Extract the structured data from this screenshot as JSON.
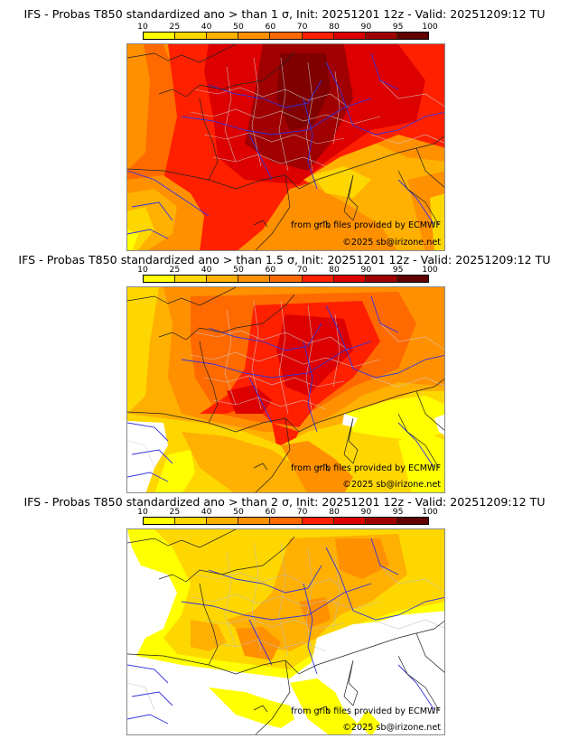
{
  "colorbar": {
    "ticks": [
      "10",
      "25",
      "40",
      "50",
      "60",
      "70",
      "80",
      "90",
      "95",
      "100"
    ],
    "colors": [
      "#ffff00",
      "#ffd700",
      "#ffb000",
      "#ff9000",
      "#ff6a00",
      "#ff2000",
      "#dd0000",
      "#a00000",
      "#600000"
    ]
  },
  "panels": [
    {
      "title": "IFS - Probas T850  standardized ano > than 1 σ, Init: 20251201 12z - Valid: 20251209:12 TU",
      "credit_source": "from grib files provided by ECMWF",
      "credit_copyright": "©2025 sb@irizone.net"
    },
    {
      "title": "IFS - Probas T850  standardized ano > than 1.5 σ, Init: 20251201 12z - Valid: 20251209:12 TU",
      "credit_source": "from grib files provided by ECMWF",
      "credit_copyright": "©2025 sb@irizone.net"
    },
    {
      "title": "IFS - Probas T850  standardized ano > than 2 σ, Init: 20251201 12z - Valid: 20251209:12 TU",
      "credit_source": "from grib files provided by ECMWF",
      "credit_copyright": "©2025 sb@irizone.net"
    }
  ]
}
